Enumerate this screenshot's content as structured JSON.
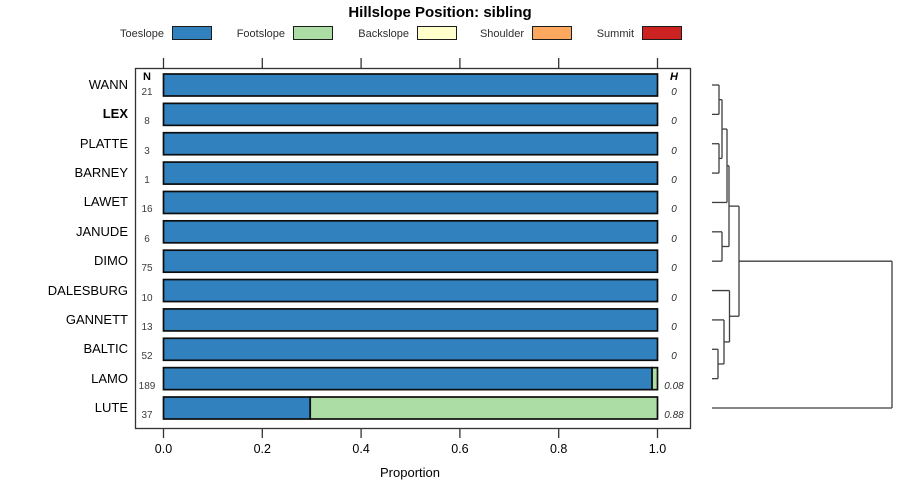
{
  "chart_data": {
    "type": "bar",
    "orientation": "horizontal-stacked",
    "title": "Hillslope Position: sibling",
    "xlabel": "Proportion",
    "xlim": [
      0.0,
      1.0
    ],
    "x_ticks": [
      "0.0",
      "0.2",
      "0.4",
      "0.6",
      "0.8",
      "1.0"
    ],
    "n_header": "N",
    "h_header": "H",
    "grid": false,
    "legend_position": "top",
    "legend": [
      {
        "label": "Toeslope",
        "color": "#3081BD"
      },
      {
        "label": "Footslope",
        "color": "#ABDDA4"
      },
      {
        "label": "Backslope",
        "color": "#FFFFCC"
      },
      {
        "label": "Shoulder",
        "color": "#FCA95F"
      },
      {
        "label": "Summit",
        "color": "#CC2222"
      }
    ],
    "rows": [
      {
        "label": "WANN",
        "bold": false,
        "n": "21",
        "h": "0",
        "values": {
          "Toeslope": 1.0
        }
      },
      {
        "label": "LEX",
        "bold": true,
        "n": "8",
        "h": "0",
        "values": {
          "Toeslope": 1.0
        }
      },
      {
        "label": "PLATTE",
        "bold": false,
        "n": "3",
        "h": "0",
        "values": {
          "Toeslope": 1.0
        }
      },
      {
        "label": "BARNEY",
        "bold": false,
        "n": "1",
        "h": "0",
        "values": {
          "Toeslope": 1.0
        }
      },
      {
        "label": "LAWET",
        "bold": false,
        "n": "16",
        "h": "0",
        "values": {
          "Toeslope": 1.0
        }
      },
      {
        "label": "JANUDE",
        "bold": false,
        "n": "6",
        "h": "0",
        "values": {
          "Toeslope": 1.0
        }
      },
      {
        "label": "DIMO",
        "bold": false,
        "n": "75",
        "h": "0",
        "values": {
          "Toeslope": 1.0
        }
      },
      {
        "label": "DALESBURG",
        "bold": false,
        "n": "10",
        "h": "0",
        "values": {
          "Toeslope": 1.0
        }
      },
      {
        "label": "GANNETT",
        "bold": false,
        "n": "13",
        "h": "0",
        "values": {
          "Toeslope": 1.0
        }
      },
      {
        "label": "BALTIC",
        "bold": false,
        "n": "52",
        "h": "0",
        "values": {
          "Toeslope": 1.0
        }
      },
      {
        "label": "LAMO",
        "bold": false,
        "n": "189",
        "h": "0.08",
        "values": {
          "Toeslope": 0.989,
          "Footslope": 0.011
        }
      },
      {
        "label": "LUTE",
        "bold": false,
        "n": "37",
        "h": "0.88",
        "values": {
          "Toeslope": 0.297,
          "Footslope": 0.703
        }
      }
    ],
    "dendrogram": {
      "merges": [
        [
          "WANN",
          "LEX",
          719
        ],
        [
          "PLATTE",
          "BARNEY",
          719
        ],
        [
          "m1",
          "m2",
          722
        ],
        [
          "m3",
          "LAWET",
          727
        ],
        [
          "JANUDE",
          "DIMO",
          722
        ],
        [
          "m4",
          "m5",
          729
        ],
        [
          "BALTIC",
          "LAMO",
          718
        ],
        [
          "GANNETT",
          "m7",
          724
        ],
        [
          "DALESBURG",
          "m8",
          729.5
        ],
        [
          "m6",
          "m9",
          739
        ],
        [
          "m10",
          "LUTE",
          892
        ]
      ]
    }
  }
}
